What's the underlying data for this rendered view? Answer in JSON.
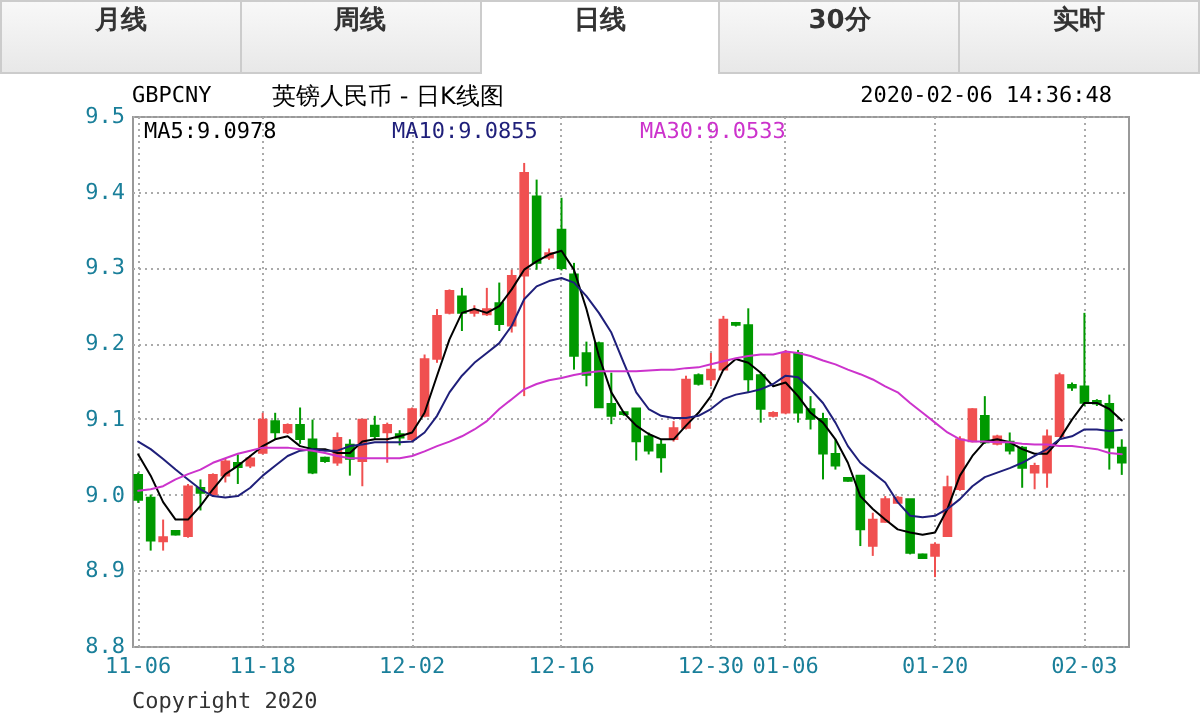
{
  "chart_data": {
    "type": "candlestick",
    "title": "英镑人民币 - 日K线图",
    "subtitle": "GBPCNY",
    "annotations": [
      "月线",
      "周线",
      "日线",
      "30分",
      "实时",
      "2020-02-06 14:36:48",
      "Copyright 2020"
    ],
    "categories": [
      "11-06",
      null,
      null,
      null,
      null,
      null,
      null,
      null,
      null,
      null,
      "11-18",
      null,
      null,
      null,
      null,
      null,
      null,
      null,
      null,
      null,
      null,
      null,
      "12-02",
      null,
      null,
      null,
      null,
      null,
      null,
      null,
      null,
      null,
      null,
      null,
      "12-16",
      null,
      null,
      null,
      null,
      null,
      null,
      null,
      null,
      null,
      null,
      null,
      "12-30",
      null,
      null,
      null,
      null,
      null,
      "01-06",
      null,
      null,
      null,
      null,
      null,
      null,
      null,
      null,
      null,
      null,
      null,
      "01-20",
      null,
      null,
      null,
      null,
      null,
      null,
      null,
      null,
      null,
      null,
      null,
      "02-03",
      null,
      null,
      null
    ],
    "ylim": [
      8.8,
      9.5
    ],
    "yticks": [
      8.8,
      8.9,
      {
        "value": 9.0,
        "label": "9.0"
      },
      9.1,
      9.2,
      9.3,
      9.4,
      9.5
    ],
    "grid": true,
    "series": [
      {
        "type": "line",
        "name": "MA5:9.0978",
        "color": "#000000",
        "values": [
          9.053,
          9.025,
          8.99,
          8.967,
          8.967,
          8.985,
          9.007,
          9.027,
          9.038,
          9.051,
          9.064,
          9.073,
          9.077,
          9.064,
          9.06,
          9.06,
          9.055,
          9.055,
          9.07,
          9.073,
          9.073,
          9.077,
          9.082,
          9.108,
          9.157,
          9.205,
          9.24,
          9.245,
          9.24,
          9.249,
          9.271,
          9.297,
          9.308,
          9.317,
          9.322,
          9.297,
          9.245,
          9.183,
          9.135,
          9.108,
          9.091,
          9.08,
          9.073,
          9.073,
          9.091,
          9.108,
          9.13,
          9.165,
          9.179,
          9.174,
          9.161,
          9.143,
          9.148,
          9.13,
          9.108,
          9.095,
          9.073,
          9.042,
          8.998,
          8.981,
          8.967,
          8.954,
          8.95,
          8.947,
          8.95,
          8.981,
          9.025,
          9.051,
          9.07,
          9.073,
          9.069,
          9.06,
          9.054,
          9.054,
          9.073,
          9.099,
          9.121,
          9.121,
          9.113,
          9.0978
        ]
      },
      {
        "type": "line",
        "name": "MA10:9.0855",
        "color": "#1f1f7a",
        "values": [
          9.07,
          9.06,
          9.047,
          9.033,
          9.02,
          9.007,
          8.998,
          8.996,
          8.998,
          9.009,
          9.025,
          9.038,
          9.051,
          9.058,
          9.06,
          9.058,
          9.058,
          9.064,
          9.066,
          9.069,
          9.069,
          9.069,
          9.07,
          9.082,
          9.104,
          9.135,
          9.157,
          9.174,
          9.187,
          9.2,
          9.223,
          9.258,
          9.275,
          9.282,
          9.286,
          9.28,
          9.262,
          9.24,
          9.214,
          9.174,
          9.135,
          9.113,
          9.104,
          9.101,
          9.101,
          9.104,
          9.113,
          9.126,
          9.132,
          9.135,
          9.139,
          9.146,
          9.157,
          9.155,
          9.139,
          9.121,
          9.095,
          9.064,
          9.042,
          9.029,
          9.016,
          8.99,
          8.972,
          8.97,
          8.972,
          8.981,
          8.994,
          9.011,
          9.023,
          9.029,
          9.035,
          9.042,
          9.051,
          9.06,
          9.073,
          9.077,
          9.086,
          9.086,
          9.084,
          9.0855
        ]
      },
      {
        "type": "line",
        "name": "MA30:9.0533",
        "color": "#cc33cc",
        "values": [
          9.005,
          9.007,
          9.011,
          9.02,
          9.027,
          9.033,
          9.042,
          9.048,
          9.054,
          9.058,
          9.062,
          9.062,
          9.062,
          9.06,
          9.058,
          9.055,
          9.051,
          9.048,
          9.048,
          9.048,
          9.048,
          9.048,
          9.051,
          9.057,
          9.064,
          9.07,
          9.077,
          9.086,
          9.097,
          9.113,
          9.126,
          9.139,
          9.146,
          9.151,
          9.154,
          9.158,
          9.161,
          9.163,
          9.163,
          9.163,
          9.163,
          9.164,
          9.165,
          9.165,
          9.167,
          9.168,
          9.172,
          9.176,
          9.18,
          9.183,
          9.185,
          9.185,
          9.189,
          9.187,
          9.183,
          9.177,
          9.172,
          9.165,
          9.159,
          9.152,
          9.143,
          9.135,
          9.121,
          9.108,
          9.095,
          9.082,
          9.073,
          9.07,
          9.07,
          9.069,
          9.069,
          9.067,
          9.066,
          9.066,
          9.064,
          9.064,
          9.062,
          9.06,
          9.055,
          9.0533
        ]
      },
      {
        "type": "candlestick",
        "ohlc": [
          [
            9.026,
            9.029,
            8.989,
            8.993
          ],
          [
            8.996,
            9.0,
            8.926,
            8.939
          ],
          [
            8.938,
            8.967,
            8.926,
            8.944
          ],
          [
            8.952,
            8.953,
            8.946,
            8.947
          ],
          [
            8.945,
            9.014,
            8.943,
            9.011
          ],
          [
            9.009,
            9.02,
            8.979,
            9.002
          ],
          [
            9.0,
            9.028,
            8.998,
            9.026
          ],
          [
            9.025,
            9.047,
            9.016,
            9.044
          ],
          [
            9.042,
            9.053,
            9.014,
            9.036
          ],
          [
            9.038,
            9.052,
            9.035,
            9.048
          ],
          [
            9.055,
            9.108,
            9.053,
            9.099
          ],
          [
            9.097,
            9.108,
            9.073,
            9.082
          ],
          [
            9.082,
            9.094,
            9.08,
            9.092
          ],
          [
            9.092,
            9.115,
            9.067,
            9.073
          ],
          [
            9.073,
            9.099,
            9.027,
            9.029
          ],
          [
            9.049,
            9.05,
            9.042,
            9.044
          ],
          [
            9.042,
            9.082,
            9.038,
            9.075
          ],
          [
            9.066,
            9.073,
            9.025,
            9.047
          ],
          [
            9.044,
            9.1,
            9.011,
            9.099
          ],
          [
            9.091,
            9.104,
            9.073,
            9.077
          ],
          [
            9.082,
            9.095,
            9.042,
            9.092
          ],
          [
            9.08,
            9.085,
            9.065,
            9.075
          ],
          [
            9.073,
            9.115,
            9.07,
            9.113
          ],
          [
            9.104,
            9.185,
            9.102,
            9.179
          ],
          [
            9.179,
            9.245,
            9.174,
            9.236
          ],
          [
            9.24,
            9.271,
            9.238,
            9.269
          ],
          [
            9.262,
            9.273,
            9.216,
            9.24
          ],
          [
            9.24,
            9.25,
            9.235,
            9.244
          ],
          [
            9.238,
            9.273,
            9.236,
            9.245
          ],
          [
            9.253,
            9.28,
            9.216,
            9.225
          ],
          [
            9.223,
            9.297,
            9.214,
            9.289
          ],
          [
            9.289,
            9.438,
            9.13,
            9.425
          ],
          [
            9.394,
            9.416,
            9.297,
            9.306
          ],
          [
            9.313,
            9.325,
            9.31,
            9.319
          ],
          [
            9.35,
            9.392,
            9.296,
            9.299
          ],
          [
            9.291,
            9.306,
            9.165,
            9.183
          ],
          [
            9.187,
            9.202,
            9.143,
            9.158
          ],
          [
            9.2,
            9.202,
            9.115,
            9.115
          ],
          [
            9.12,
            9.161,
            9.093,
            9.104
          ],
          [
            9.109,
            9.11,
            9.104,
            9.106
          ],
          [
            9.114,
            9.114,
            9.045,
            9.07
          ],
          [
            9.077,
            9.082,
            9.053,
            9.058
          ],
          [
            9.066,
            9.073,
            9.029,
            9.049
          ],
          [
            9.073,
            9.097,
            9.07,
            9.088
          ],
          [
            9.088,
            9.157,
            9.086,
            9.152
          ],
          [
            9.158,
            9.16,
            9.144,
            9.146
          ],
          [
            9.152,
            9.187,
            9.143,
            9.165
          ],
          [
            9.165,
            9.236,
            9.164,
            9.231
          ],
          [
            9.227,
            9.228,
            9.222,
            9.224
          ],
          [
            9.224,
            9.246,
            9.135,
            9.152
          ],
          [
            9.158,
            9.161,
            9.095,
            9.113
          ],
          [
            9.104,
            9.11,
            9.102,
            9.108
          ],
          [
            9.108,
            9.191,
            9.106,
            9.187
          ],
          [
            9.187,
            9.191,
            9.095,
            9.108
          ],
          [
            9.113,
            9.13,
            9.086,
            9.1
          ],
          [
            9.1,
            9.108,
            9.02,
            9.054
          ],
          [
            9.054,
            9.073,
            9.033,
            9.038
          ],
          [
            9.022,
            9.023,
            9.017,
            9.018
          ],
          [
            9.025,
            9.025,
            8.932,
            8.954
          ],
          [
            8.932,
            8.976,
            8.919,
            8.967
          ],
          [
            8.964,
            8.998,
            8.963,
            8.994
          ],
          [
            8.989,
            8.998,
            8.988,
            8.996
          ],
          [
            8.994,
            8.994,
            8.921,
            8.923
          ],
          [
            8.921,
            8.922,
            8.915,
            8.916
          ],
          [
            8.919,
            8.937,
            8.891,
            8.934
          ],
          [
            8.945,
            9.025,
            8.944,
            9.01
          ],
          [
            9.007,
            9.077,
            9.005,
            9.073
          ],
          [
            9.07,
            9.114,
            9.069,
            9.113
          ],
          [
            9.104,
            9.13,
            9.067,
            9.069
          ],
          [
            9.067,
            9.079,
            9.065,
            9.077
          ],
          [
            9.07,
            9.082,
            9.053,
            9.058
          ],
          [
            9.062,
            9.064,
            9.009,
            9.035
          ],
          [
            9.029,
            9.042,
            9.007,
            9.038
          ],
          [
            9.029,
            9.086,
            9.009,
            9.077
          ],
          [
            9.077,
            9.161,
            9.076,
            9.158
          ],
          [
            9.145,
            9.148,
            9.137,
            9.141
          ],
          [
            9.143,
            9.24,
            9.117,
            9.121
          ],
          [
            9.124,
            9.126,
            9.117,
            9.12
          ],
          [
            9.12,
            9.132,
            9.033,
            9.062
          ],
          [
            9.062,
            9.073,
            9.026,
            9.042
          ]
        ],
        "colors": [
          "#009900",
          "#009900",
          "#f05050",
          "#009900",
          "#f05050",
          "#009900",
          "#f05050",
          "#f05050",
          "#009900",
          "#f05050",
          "#f05050",
          "#009900",
          "#f05050",
          "#009900",
          "#009900",
          "#009900",
          "#f05050",
          "#009900",
          "#f05050",
          "#009900",
          "#f05050",
          "#009900",
          "#f05050",
          "#f05050",
          "#f05050",
          "#f05050",
          "#009900",
          "#f05050",
          "#f05050",
          "#009900",
          "#f05050",
          "#f05050",
          "#009900",
          "#f05050",
          "#009900",
          "#009900",
          "#009900",
          "#009900",
          "#009900",
          "#009900",
          "#009900",
          "#009900",
          "#009900",
          "#f05050",
          "#f05050",
          "#009900",
          "#f05050",
          "#f05050",
          "#009900",
          "#009900",
          "#009900",
          "#f05050",
          "#f05050",
          "#009900",
          "#009900",
          "#009900",
          "#009900",
          "#009900",
          "#009900",
          "#f05050",
          "#f05050",
          "#f05050",
          "#009900",
          "#009900",
          "#f05050",
          "#f05050",
          "#f05050",
          "#f05050",
          "#009900",
          "#f05050",
          "#009900",
          "#009900",
          "#f05050",
          "#f05050",
          "#f05050",
          "#009900",
          "#009900",
          "#009900",
          "#009900",
          "#009900"
        ]
      }
    ]
  }
}
